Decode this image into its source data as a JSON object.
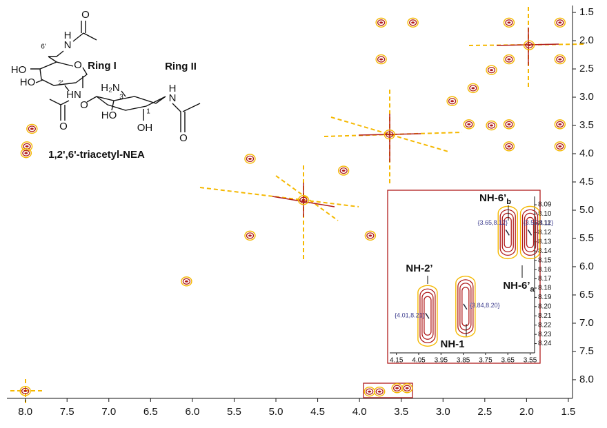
{
  "chart_data": {
    "type": "contour",
    "xlim": [
      8.22,
      1.45
    ],
    "ylim": [
      1.28,
      8.33
    ],
    "xticks": [
      {
        "value": 8,
        "label": "8.0"
      },
      7.5,
      {
        "value": 7,
        "label": "7.0"
      },
      6.5,
      {
        "value": 6,
        "label": "6.0"
      },
      5.5,
      {
        "value": 5,
        "label": "5.0"
      },
      4.5,
      {
        "value": 4,
        "label": "4.0"
      },
      3.5,
      {
        "value": 3,
        "label": "3.0"
      },
      2.5,
      {
        "value": 2,
        "label": "2.0"
      },
      1.5
    ],
    "yticks": [
      1.5,
      {
        "value": 2,
        "label": "2.0"
      },
      2.5,
      {
        "value": 3,
        "label": "3.0"
      },
      3.5,
      {
        "value": 4,
        "label": "4.0"
      },
      4.5,
      {
        "value": 5,
        "label": "5.0"
      },
      5.5,
      {
        "value": 6,
        "label": "6.0"
      },
      6.5,
      {
        "value": 7,
        "label": "7.0"
      },
      7.5,
      {
        "value": 8,
        "label": "8.0"
      }
    ],
    "outer_color": "#f5b800",
    "inner_color": "#b01c1c",
    "x": [
      3.74,
      3.36,
      2.21,
      1.6,
      3.74,
      1.97,
      2.21,
      1.6,
      2.42,
      2.64,
      2.89,
      3.64,
      2.21,
      1.6,
      2.21,
      1.6,
      2.42,
      2.69,
      5.31,
      4.19,
      4.67,
      5.31,
      3.87,
      6.07,
      8.0,
      3.88,
      3.76,
      3.55,
      3.43,
      7.92,
      7.98,
      7.99
    ],
    "values": [
      1.68,
      1.68,
      1.68,
      1.68,
      2.33,
      2.08,
      2.33,
      2.33,
      2.52,
      2.84,
      3.07,
      3.66,
      3.48,
      3.48,
      3.87,
      3.87,
      3.5,
      3.48,
      4.09,
      4.3,
      4.82,
      5.45,
      5.45,
      6.26,
      8.2,
      8.21,
      8.21,
      8.15,
      8.15,
      3.56,
      3.87,
      3.99
    ],
    "structure": {
      "labels": [
        "O",
        "H",
        "N",
        "6'",
        "O",
        "HO",
        "HO",
        "2'",
        "HN",
        "H₂N",
        "3",
        "H",
        "N",
        "1",
        "O",
        "HO",
        "OH",
        "O",
        "O"
      ],
      "bold_labels": [
        "Ring I",
        "Ring II"
      ],
      "caption": "1,2',6'-triacetyl-NEA"
    },
    "inset": {
      "xlim": [
        4.18,
        3.53
      ],
      "ylim": [
        8.081,
        8.25
      ],
      "xticks": [
        4.15,
        4.05,
        3.95,
        3.85,
        3.75,
        3.65,
        3.55
      ],
      "yticks": [
        8.09,
        {
          "value": 8.1,
          "label": "8.10"
        },
        8.11,
        8.12,
        8.13,
        8.14,
        8.15,
        8.16,
        8.17,
        8.18,
        8.19,
        {
          "value": 8.2,
          "label": "8.20"
        },
        8.21,
        8.22,
        8.23,
        8.24
      ],
      "x": [
        4.01,
        3.84,
        3.65,
        3.55
      ],
      "values": [
        8.21,
        8.2,
        8.12,
        8.12
      ],
      "value_labels": [
        "{4.01,8.21}",
        "{3.84,8.20}",
        "{3.65,8.12}",
        "{3.55,8.12}"
      ],
      "annotations": [
        {
          "text": "NH-2’"
        },
        {
          "text": "NH-1"
        },
        {
          "text": "NH-6’",
          "sub": "b"
        },
        {
          "text": "NH-6’",
          "sub": "a"
        }
      ]
    }
  }
}
